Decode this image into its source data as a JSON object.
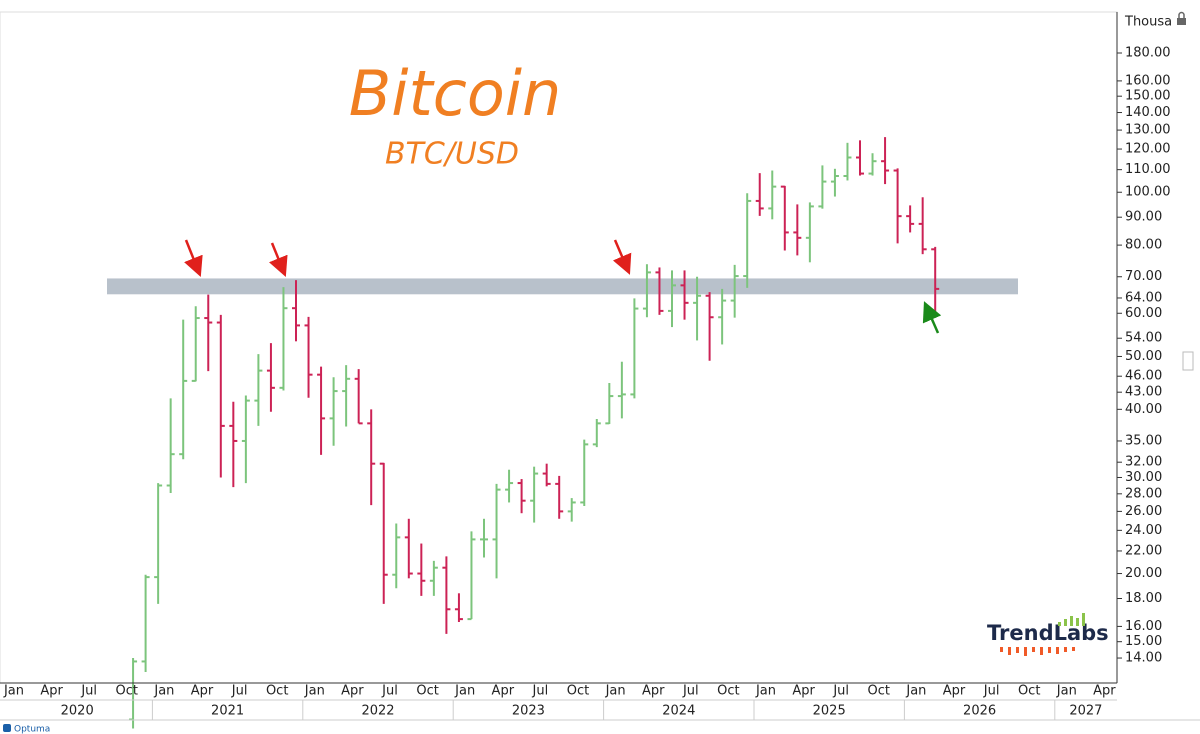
{
  "chart_data": {
    "type": "ohlc",
    "title": "Bitcoin",
    "subtitle": "BTC/USD",
    "y_axis_label": "Thousa",
    "watermark": "TrendLabs",
    "footer": "Optuma",
    "log_scale": true,
    "up_color": "#7cc47c",
    "down_color": "#cc2255",
    "zone": {
      "low": 65,
      "high": 69.5,
      "color": "#b8c1cb"
    },
    "ylim": [
      12.6,
      214
    ],
    "yticks": [
      {
        "value": 180,
        "label": "180.00"
      },
      {
        "value": 160,
        "label": "160.00"
      },
      {
        "value": 150,
        "label": "150.00"
      },
      {
        "value": 140,
        "label": "140.00"
      },
      {
        "value": 130,
        "label": "130.00"
      },
      {
        "value": 120,
        "label": "120.00"
      },
      {
        "value": 110,
        "label": "110.00"
      },
      {
        "value": 100,
        "label": "100.00"
      },
      {
        "value": 90,
        "label": "90.00"
      },
      {
        "value": 80,
        "label": "80.00"
      },
      {
        "value": 70,
        "label": "70.00"
      },
      {
        "value": 64,
        "label": "64.00"
      },
      {
        "value": 60,
        "label": "60.00"
      },
      {
        "value": 54,
        "label": "54.00"
      },
      {
        "value": 50,
        "label": "50.00"
      },
      {
        "value": 46,
        "label": "46.00"
      },
      {
        "value": 43,
        "label": "43.00"
      },
      {
        "value": 40,
        "label": "40.00"
      },
      {
        "value": 35,
        "label": "35.00"
      },
      {
        "value": 32,
        "label": "32.00"
      },
      {
        "value": 30,
        "label": "30.00"
      },
      {
        "value": 28,
        "label": "28.00"
      },
      {
        "value": 26,
        "label": "26.00"
      },
      {
        "value": 24,
        "label": "24.00"
      },
      {
        "value": 22,
        "label": "22.00"
      },
      {
        "value": 20,
        "label": "20.00"
      },
      {
        "value": 18,
        "label": "18.00"
      },
      {
        "value": 16,
        "label": "16.00"
      },
      {
        "value": 15,
        "label": "15.00"
      },
      {
        "value": 14,
        "label": "14.00"
      }
    ],
    "month_labels": [
      "Jan",
      "Apr",
      "Jul",
      "Oct",
      "Jan",
      "Apr",
      "Jul",
      "Oct",
      "Jan",
      "Apr",
      "Jul",
      "Oct",
      "Jan",
      "Apr",
      "Jul",
      "Oct",
      "Jan",
      "Apr",
      "Jul",
      "Oct",
      "Jan",
      "Apr",
      "Jul",
      "Oct",
      "Jan",
      "Apr",
      "Jul",
      "Oct",
      "Jan",
      "Apr"
    ],
    "year_labels": [
      "2020",
      "2021",
      "2022",
      "2023",
      "2024",
      "2025",
      "2026",
      "2027"
    ],
    "x": [
      "2020-10",
      "2020-11",
      "2020-12",
      "2021-01",
      "2021-02",
      "2021-03",
      "2021-04",
      "2021-05",
      "2021-06",
      "2021-07",
      "2021-08",
      "2021-09",
      "2021-10",
      "2021-11",
      "2021-12",
      "2022-01",
      "2022-02",
      "2022-03",
      "2022-04",
      "2022-05",
      "2022-06",
      "2022-07",
      "2022-08",
      "2022-09",
      "2022-10",
      "2022-11",
      "2022-12",
      "2023-01",
      "2023-02",
      "2023-03",
      "2023-04",
      "2023-05",
      "2023-06",
      "2023-07",
      "2023-08",
      "2023-09",
      "2023-10",
      "2023-11",
      "2023-12",
      "2024-01",
      "2024-02",
      "2024-03",
      "2024-04",
      "2024-05",
      "2024-06",
      "2024-07",
      "2024-08",
      "2024-09",
      "2024-10",
      "2024-11",
      "2024-12",
      "2025-01",
      "2025-02",
      "2025-03",
      "2025-04",
      "2025-05",
      "2025-06",
      "2025-07",
      "2025-08",
      "2025-09",
      "2025-10",
      "2025-11",
      "2025-12",
      "2026-01",
      "2026-02"
    ],
    "open": [
      10.8,
      13.8,
      19.7,
      29.0,
      33.1,
      45.1,
      58.8,
      57.7,
      37.3,
      35.0,
      41.5,
      47.1,
      43.8,
      61.3,
      57.0,
      46.3,
      38.5,
      43.2,
      45.5,
      37.7,
      31.8,
      19.9,
      23.3,
      20.0,
      19.4,
      20.5,
      17.2,
      16.5,
      23.1,
      23.1,
      28.5,
      29.3,
      27.2,
      30.5,
      29.2,
      26.0,
      27.0,
      34.5,
      37.7,
      42.3,
      42.6,
      61.2,
      71.3,
      60.6,
      67.5,
      62.7,
      64.6,
      59.0,
      63.3,
      70.2,
      96.4,
      93.4,
      102.4,
      84.4,
      82.5,
      94.2,
      104.6,
      107.1,
      115.8,
      108.2,
      114.0,
      109.6,
      90.4,
      87.5,
      78.6
    ],
    "high": [
      14.0,
      19.9,
      29.3,
      41.9,
      58.4,
      61.8,
      64.9,
      59.6,
      41.3,
      42.4,
      50.5,
      52.9,
      67.0,
      69.0,
      59.1,
      47.9,
      45.8,
      48.2,
      47.4,
      40.0,
      31.9,
      24.7,
      25.2,
      22.7,
      21.1,
      21.5,
      18.4,
      23.9,
      25.2,
      29.2,
      31.0,
      29.8,
      31.4,
      31.8,
      30.2,
      27.5,
      35.2,
      38.4,
      44.7,
      48.9,
      63.9,
      73.8,
      72.8,
      71.9,
      71.9,
      70.0,
      65.6,
      66.5,
      73.6,
      99.6,
      108.4,
      109.6,
      102.7,
      95.0,
      95.8,
      112.0,
      110.4,
      123.2,
      124.5,
      117.9,
      126.2,
      110.6,
      94.6,
      97.9,
      79.4
    ],
    "low": [
      10.4,
      13.2,
      17.6,
      28.1,
      32.4,
      45.0,
      47.0,
      30.0,
      28.8,
      29.3,
      37.3,
      39.6,
      43.3,
      53.3,
      42.0,
      33.0,
      34.3,
      37.2,
      37.7,
      26.7,
      17.6,
      18.8,
      19.6,
      18.2,
      18.2,
      15.5,
      16.3,
      16.5,
      21.4,
      19.6,
      27.0,
      25.8,
      24.8,
      28.9,
      25.2,
      24.9,
      26.6,
      34.1,
      37.6,
      38.5,
      41.9,
      59.0,
      59.6,
      56.6,
      58.4,
      53.5,
      49.1,
      52.6,
      58.9,
      66.8,
      90.5,
      89.2,
      78.2,
      76.6,
      74.4,
      93.3,
      98.2,
      105.1,
      107.3,
      107.3,
      103.5,
      80.6,
      84.4,
      77.0,
      60.1
    ],
    "close": [
      13.8,
      19.7,
      29.0,
      33.1,
      45.1,
      58.8,
      57.7,
      37.3,
      35.0,
      41.5,
      47.1,
      43.8,
      61.3,
      57.0,
      46.3,
      38.5,
      43.2,
      45.5,
      37.7,
      31.8,
      19.9,
      23.3,
      20.0,
      19.4,
      20.5,
      17.2,
      16.5,
      23.1,
      23.1,
      28.5,
      29.3,
      27.2,
      30.5,
      29.2,
      26.0,
      27.0,
      34.5,
      37.7,
      42.3,
      42.6,
      61.2,
      71.3,
      60.6,
      67.5,
      62.7,
      64.6,
      59.0,
      63.3,
      70.2,
      96.4,
      93.4,
      102.4,
      84.4,
      82.5,
      94.2,
      104.6,
      107.1,
      115.8,
      108.2,
      114.0,
      109.6,
      90.4,
      87.5,
      78.6,
      66.5
    ]
  }
}
